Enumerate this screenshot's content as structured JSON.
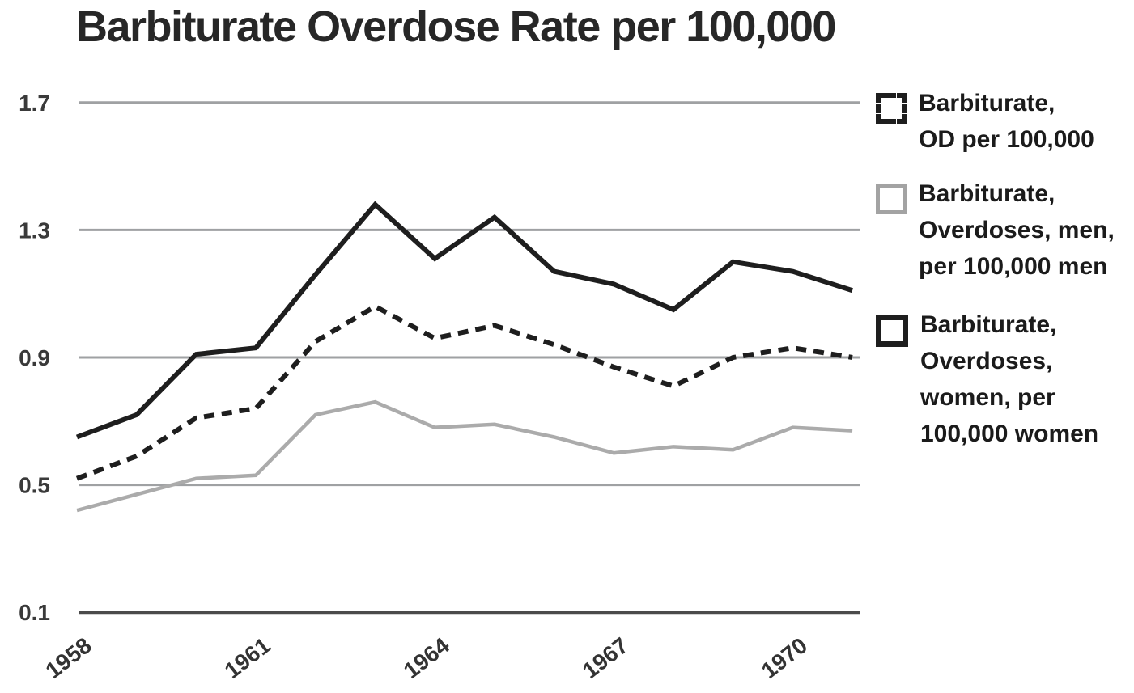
{
  "title": "Barbiturate Overdose Rate per 100,000",
  "colors": {
    "line_dark": "#1e1e1e",
    "line_gray": "#ababab",
    "gridline": "#9fa1a3",
    "axis_bottom": "#4b4b4b",
    "tick_text": "#333333",
    "title_text": "#272727"
  },
  "chart_data": {
    "type": "line",
    "x": [
      1958,
      1959,
      1960,
      1961,
      1962,
      1963,
      1964,
      1965,
      1966,
      1967,
      1968,
      1969,
      1970,
      1971
    ],
    "series": [
      {
        "name": "Barbiturate, OD per 100,000",
        "style": "dashed",
        "color": "#1e1e1e",
        "width": 6,
        "dash": "13 9",
        "z": 2,
        "values": [
          0.52,
          0.59,
          0.71,
          0.74,
          0.95,
          1.06,
          0.96,
          1.0,
          0.94,
          0.87,
          0.81,
          0.9,
          0.93,
          0.9
        ]
      },
      {
        "name": "Barbiturate, Overdoses, men, per 100,000 men",
        "style": "solid",
        "color": "#ababab",
        "width": 4.5,
        "dash": null,
        "z": 1,
        "values": [
          0.42,
          0.47,
          0.52,
          0.53,
          0.72,
          0.76,
          0.68,
          0.69,
          0.65,
          0.6,
          0.62,
          0.61,
          0.68,
          0.67
        ]
      },
      {
        "name": "Barbiturate, Overdoses, women, per 100,000 women",
        "style": "solid-thick",
        "color": "#1e1e1e",
        "width": 6,
        "dash": null,
        "z": 3,
        "values": [
          0.65,
          0.72,
          0.91,
          0.93,
          1.16,
          1.38,
          1.21,
          1.34,
          1.17,
          1.13,
          1.05,
          1.2,
          1.17,
          1.11
        ]
      }
    ],
    "title": "Barbiturate Overdose Rate per 100,000",
    "xlabel": "",
    "ylabel": "",
    "ylim": [
      0.1,
      1.7
    ],
    "yticks": [
      1.7,
      1.3,
      0.9,
      0.5,
      0.1
    ],
    "ytick_labels": [
      "1.7",
      "1.3",
      "0.9",
      "0.5",
      "0.1"
    ],
    "xticks": [
      1958,
      1961,
      1964,
      1967,
      1970
    ],
    "xtick_labels": [
      "1958",
      "1961",
      "1964",
      "1967",
      "1970"
    ],
    "grid": true,
    "legend_position": "right"
  },
  "legend": {
    "items": [
      {
        "swatch": "dashed",
        "label": "Barbiturate,\nOD per 100,000"
      },
      {
        "swatch": "gray",
        "label": "Barbiturate,\nOverdoses, men,\nper 100,000 men"
      },
      {
        "swatch": "black",
        "label": "Barbiturate,\nOverdoses,\nwomen, per\n100,000 women"
      }
    ]
  }
}
